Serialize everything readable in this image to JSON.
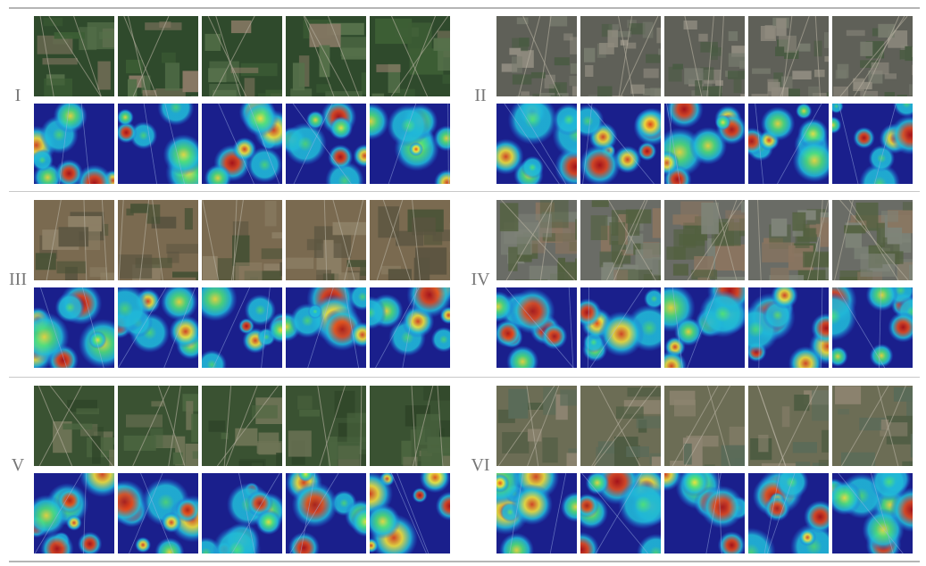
{
  "figure": {
    "groups": [
      {
        "label": "I",
        "scene": "cropland",
        "palette": [
          "#2f4a2c",
          "#3d5e35",
          "#55704a",
          "#8a7a66"
        ]
      },
      {
        "label": "II",
        "scene": "urban",
        "palette": [
          "#5f6058",
          "#767a6d",
          "#8e8a7e",
          "#4a5b43"
        ]
      },
      {
        "label": "III",
        "scene": "mountain",
        "palette": [
          "#7a6a50",
          "#5a5440",
          "#8d8066",
          "#495236"
        ]
      },
      {
        "label": "IV",
        "scene": "industrial",
        "palette": [
          "#6a6c66",
          "#7e8478",
          "#52603f",
          "#8a7560"
        ]
      },
      {
        "label": "V",
        "scene": "forest",
        "palette": [
          "#3a5232",
          "#4b6540",
          "#2e4428",
          "#6e7456"
        ]
      },
      {
        "label": "VI",
        "scene": "river",
        "palette": [
          "#6c6d55",
          "#4e5c42",
          "#8d8470",
          "#5a6b59"
        ]
      }
    ],
    "tiles_per_row": 5,
    "heatmap_colors": [
      "#1a1f8c",
      "#1f5fd6",
      "#20b8d8",
      "#4fe07a",
      "#f2e33a",
      "#e24a1c",
      "#b3120e"
    ]
  }
}
